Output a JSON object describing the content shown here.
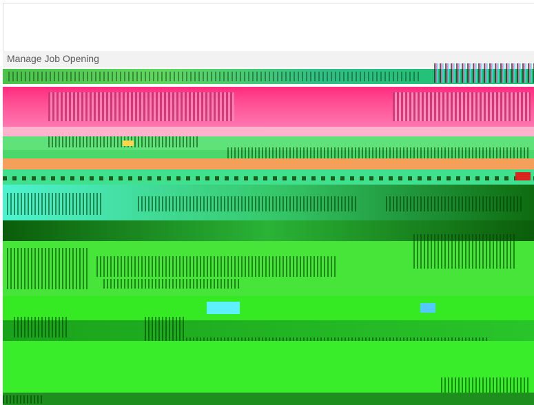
{
  "page": {
    "title": "Manage Job Opening"
  },
  "colors": {
    "header_bg": "#f2f2f2",
    "title_text": "#5a5a5a",
    "alert_band": "#ff2b7f",
    "primary_green": "#47e43a",
    "dark_green": "#0b5d0b",
    "orange_band": "#f4a05b",
    "cyan": "#4ff2d0"
  }
}
